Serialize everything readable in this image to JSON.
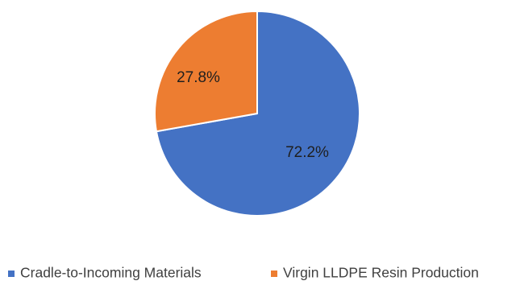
{
  "chart_data": {
    "type": "pie",
    "title": "",
    "slices": [
      {
        "label": "Cradle-to-Incoming Materials",
        "value": 72.2,
        "display": "72.2%",
        "color": "#4472C4"
      },
      {
        "label": "Virgin LLDPE Resin Production",
        "value": 27.8,
        "display": "27.8%",
        "color": "#ED7D31"
      }
    ],
    "legend_position": "bottom",
    "start_angle": "12 o'clock, clockwise"
  }
}
